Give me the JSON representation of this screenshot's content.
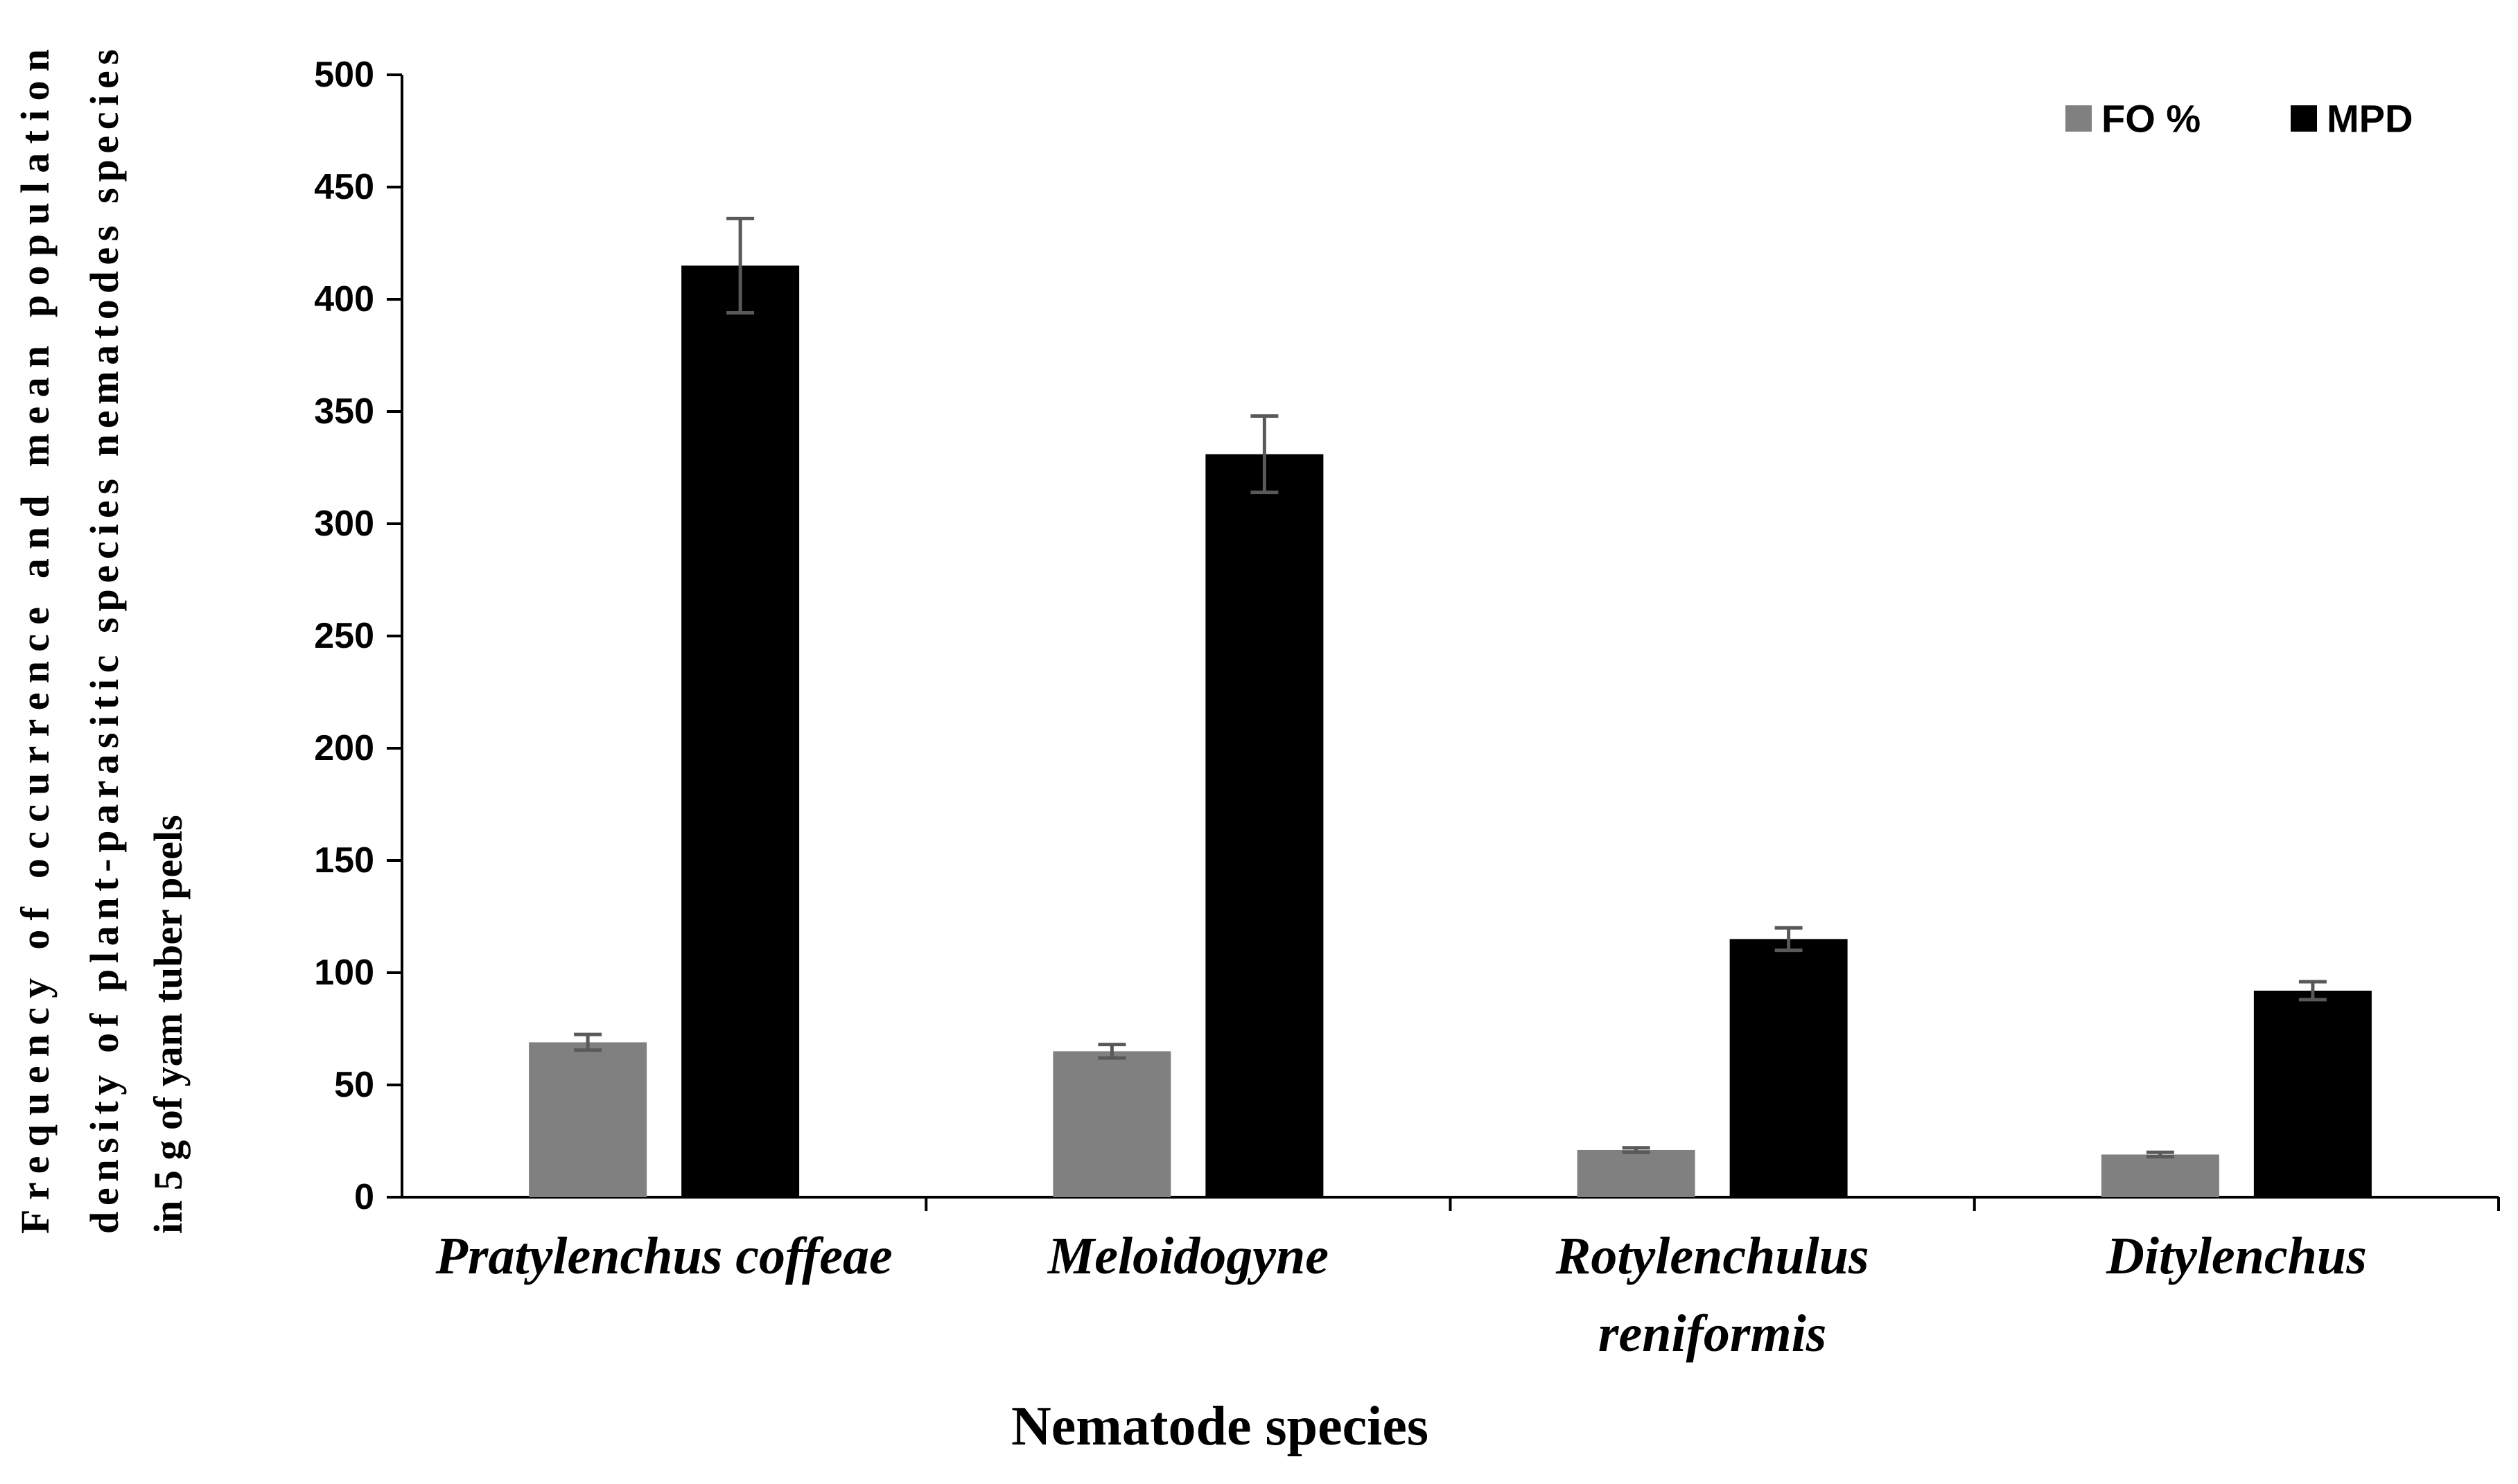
{
  "chart_data": {
    "type": "bar",
    "title": "",
    "xlabel": "Nematode species",
    "ylabel": "Frequency of occurrence and mean population density of plant-parasitic species nematodes species in 5 g of yam tuber peels",
    "ylabel_lines": [
      "Frequency of occurrence and mean population",
      "density of plant-parasitic species nematodes species",
      "in 5 g of yam tuber peels"
    ],
    "categories": [
      [
        "Pratylenchus coffeae"
      ],
      [
        "Meloidogyne"
      ],
      [
        "Rotylenchulus",
        "reniformis"
      ],
      [
        "Ditylenchus"
      ]
    ],
    "series": [
      {
        "name": "FO %",
        "color": "#808080",
        "values": [
          69,
          65,
          21,
          19
        ],
        "errors": [
          3.5,
          3,
          1,
          1
        ]
      },
      {
        "name": "MPD",
        "color": "#000000",
        "values": [
          415,
          331,
          115,
          92
        ],
        "errors": [
          21,
          17,
          5,
          4
        ]
      }
    ],
    "ylim": [
      0,
      500
    ],
    "yticks": [
      0,
      50,
      100,
      150,
      200,
      250,
      300,
      350,
      400,
      450,
      500
    ],
    "error_bar_color": "#595959",
    "grid": false,
    "legend_position": "top-right"
  }
}
